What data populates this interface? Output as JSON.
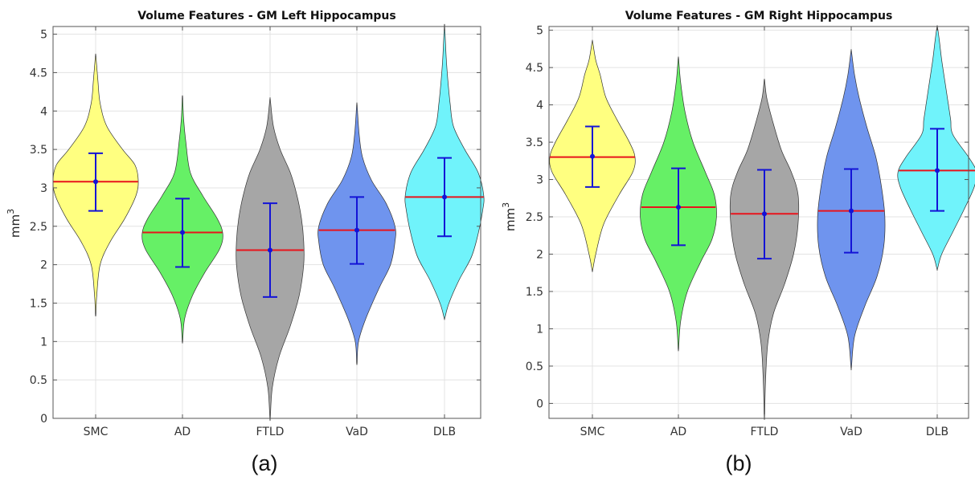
{
  "chart_data": [
    {
      "type": "violin",
      "title": "Volume Features - GM Left Hippocampus",
      "caption": "(a)",
      "ylabel": "mm",
      "ylabel_sup": "3",
      "xlabel": "",
      "ylim": [
        0,
        5.1
      ],
      "yticks": [
        0,
        0.5,
        1,
        1.5,
        2,
        2.5,
        3,
        3.5,
        4,
        4.5,
        5
      ],
      "ytick_labels": [
        "0",
        "0.5",
        "1",
        "1.5",
        "2",
        "2.5",
        "3",
        "3.5",
        "4",
        "4.5",
        "5"
      ],
      "grid": true,
      "categories": [
        "SMC",
        "AD",
        "FTLD",
        "VaD",
        "DLB"
      ],
      "series": [
        {
          "category": "SMC",
          "color": "#ffff80",
          "min": 1.35,
          "max": 4.72,
          "median": 3.08,
          "mean": 3.08,
          "sd_low": 2.7,
          "sd_high": 3.45,
          "profile": [
            [
              1.35,
              0.002
            ],
            [
              1.6,
              0.01
            ],
            [
              2.0,
              0.04
            ],
            [
              2.3,
              0.13
            ],
            [
              2.6,
              0.26
            ],
            [
              2.9,
              0.36
            ],
            [
              3.1,
              0.38
            ],
            [
              3.3,
              0.35
            ],
            [
              3.5,
              0.24
            ],
            [
              3.8,
              0.1
            ],
            [
              4.1,
              0.04
            ],
            [
              4.4,
              0.02
            ],
            [
              4.72,
              0.002
            ]
          ]
        },
        {
          "category": "AD",
          "color": "#66f066",
          "min": 1.0,
          "max": 4.18,
          "median": 2.42,
          "mean": 2.42,
          "sd_low": 1.97,
          "sd_high": 2.86,
          "profile": [
            [
              1.0,
              0.002
            ],
            [
              1.3,
              0.02
            ],
            [
              1.6,
              0.09
            ],
            [
              1.9,
              0.2
            ],
            [
              2.2,
              0.33
            ],
            [
              2.4,
              0.36
            ],
            [
              2.6,
              0.31
            ],
            [
              2.9,
              0.18
            ],
            [
              3.2,
              0.07
            ],
            [
              3.6,
              0.03
            ],
            [
              3.9,
              0.01
            ],
            [
              4.18,
              0.002
            ]
          ]
        },
        {
          "category": "FTLD",
          "color": "#a6a6a6",
          "min": 0.0,
          "max": 4.15,
          "median": 2.19,
          "mean": 2.19,
          "sd_low": 1.58,
          "sd_high": 2.8,
          "profile": [
            [
              0.0,
              0.002
            ],
            [
              0.4,
              0.02
            ],
            [
              0.8,
              0.08
            ],
            [
              1.2,
              0.18
            ],
            [
              1.6,
              0.26
            ],
            [
              2.0,
              0.3
            ],
            [
              2.3,
              0.3
            ],
            [
              2.6,
              0.28
            ],
            [
              2.9,
              0.24
            ],
            [
              3.2,
              0.18
            ],
            [
              3.5,
              0.09
            ],
            [
              3.8,
              0.03
            ],
            [
              4.15,
              0.002
            ]
          ]
        },
        {
          "category": "VaD",
          "color": "#6f94ee",
          "min": 0.72,
          "max": 4.08,
          "median": 2.45,
          "mean": 2.45,
          "sd_low": 2.01,
          "sd_high": 2.88,
          "profile": [
            [
              0.72,
              0.002
            ],
            [
              1.0,
              0.015
            ],
            [
              1.3,
              0.08
            ],
            [
              1.7,
              0.2
            ],
            [
              2.0,
              0.3
            ],
            [
              2.3,
              0.34
            ],
            [
              2.5,
              0.34
            ],
            [
              2.8,
              0.26
            ],
            [
              3.1,
              0.13
            ],
            [
              3.4,
              0.05
            ],
            [
              3.7,
              0.02
            ],
            [
              4.08,
              0.002
            ]
          ]
        },
        {
          "category": "DLB",
          "color": "#70f3fb",
          "min": 1.3,
          "max": 5.1,
          "median": 2.88,
          "mean": 2.88,
          "sd_low": 2.37,
          "sd_high": 3.39,
          "profile": [
            [
              1.3,
              0.002
            ],
            [
              1.5,
              0.04
            ],
            [
              1.8,
              0.13
            ],
            [
              2.1,
              0.24
            ],
            [
              2.4,
              0.3
            ],
            [
              2.7,
              0.34
            ],
            [
              2.9,
              0.35
            ],
            [
              3.2,
              0.3
            ],
            [
              3.5,
              0.18
            ],
            [
              3.8,
              0.08
            ],
            [
              4.1,
              0.05
            ],
            [
              4.4,
              0.03
            ],
            [
              4.7,
              0.015
            ],
            [
              5.1,
              0.002
            ]
          ]
        }
      ]
    },
    {
      "type": "violin",
      "title": "Volume Features - GM Right Hippocampus",
      "caption": "(b)",
      "ylabel": "mm",
      "ylabel_sup": "3",
      "xlabel": "",
      "ylim": [
        -0.2,
        5.05
      ],
      "yticks": [
        0,
        0.5,
        1,
        1.5,
        2,
        2.5,
        3,
        3.5,
        4,
        4.5,
        5
      ],
      "ytick_labels": [
        "0",
        "0.5",
        "1",
        "1.5",
        "2",
        "2.5",
        "3",
        "3.5",
        "4",
        "4.5",
        "5"
      ],
      "grid": true,
      "categories": [
        "SMC",
        "AD",
        "FTLD",
        "VaD",
        "DLB"
      ],
      "series": [
        {
          "category": "SMC",
          "color": "#ffff80",
          "min": 1.78,
          "max": 4.85,
          "median": 3.3,
          "mean": 3.31,
          "sd_low": 2.9,
          "sd_high": 3.71,
          "profile": [
            [
              1.78,
              0.002
            ],
            [
              2.0,
              0.03
            ],
            [
              2.4,
              0.1
            ],
            [
              2.8,
              0.24
            ],
            [
              3.1,
              0.36
            ],
            [
              3.3,
              0.38
            ],
            [
              3.5,
              0.33
            ],
            [
              3.8,
              0.22
            ],
            [
              4.1,
              0.12
            ],
            [
              4.4,
              0.07
            ],
            [
              4.6,
              0.03
            ],
            [
              4.85,
              0.002
            ]
          ]
        },
        {
          "category": "AD",
          "color": "#66f066",
          "min": 0.73,
          "max": 4.62,
          "median": 2.63,
          "mean": 2.63,
          "sd_low": 2.12,
          "sd_high": 3.15,
          "profile": [
            [
              0.73,
              0.002
            ],
            [
              1.1,
              0.02
            ],
            [
              1.5,
              0.08
            ],
            [
              1.9,
              0.2
            ],
            [
              2.2,
              0.3
            ],
            [
              2.5,
              0.34
            ],
            [
              2.8,
              0.32
            ],
            [
              3.1,
              0.24
            ],
            [
              3.5,
              0.13
            ],
            [
              3.9,
              0.06
            ],
            [
              4.3,
              0.02
            ],
            [
              4.62,
              0.002
            ]
          ]
        },
        {
          "category": "FTLD",
          "color": "#a6a6a6",
          "min": -0.18,
          "max": 4.33,
          "median": 2.54,
          "mean": 2.54,
          "sd_low": 1.94,
          "sd_high": 3.13,
          "profile": [
            [
              -0.18,
              0.002
            ],
            [
              0.3,
              0.01
            ],
            [
              0.8,
              0.03
            ],
            [
              1.2,
              0.08
            ],
            [
              1.6,
              0.18
            ],
            [
              2.0,
              0.26
            ],
            [
              2.4,
              0.3
            ],
            [
              2.8,
              0.3
            ],
            [
              3.1,
              0.24
            ],
            [
              3.4,
              0.15
            ],
            [
              3.8,
              0.07
            ],
            [
              4.1,
              0.02
            ],
            [
              4.33,
              0.002
            ]
          ]
        },
        {
          "category": "VaD",
          "color": "#6f94ee",
          "min": 0.48,
          "max": 4.72,
          "median": 2.58,
          "mean": 2.58,
          "sd_low": 2.02,
          "sd_high": 3.14,
          "profile": [
            [
              0.48,
              0.002
            ],
            [
              0.9,
              0.03
            ],
            [
              1.3,
              0.12
            ],
            [
              1.7,
              0.23
            ],
            [
              2.1,
              0.29
            ],
            [
              2.5,
              0.3
            ],
            [
              2.9,
              0.27
            ],
            [
              3.3,
              0.22
            ],
            [
              3.7,
              0.14
            ],
            [
              4.1,
              0.07
            ],
            [
              4.4,
              0.03
            ],
            [
              4.72,
              0.002
            ]
          ]
        },
        {
          "category": "DLB",
          "color": "#70f3fb",
          "min": 1.8,
          "max": 5.05,
          "median": 3.12,
          "mean": 3.12,
          "sd_low": 2.58,
          "sd_high": 3.68,
          "profile": [
            [
              1.8,
              0.002
            ],
            [
              2.0,
              0.04
            ],
            [
              2.3,
              0.14
            ],
            [
              2.6,
              0.24
            ],
            [
              2.9,
              0.33
            ],
            [
              3.1,
              0.35
            ],
            [
              3.3,
              0.28
            ],
            [
              3.6,
              0.14
            ],
            [
              3.8,
              0.12
            ],
            [
              4.0,
              0.1
            ],
            [
              4.3,
              0.07
            ],
            [
              4.6,
              0.04
            ],
            [
              4.85,
              0.02
            ],
            [
              5.05,
              0.002
            ]
          ]
        }
      ]
    }
  ]
}
